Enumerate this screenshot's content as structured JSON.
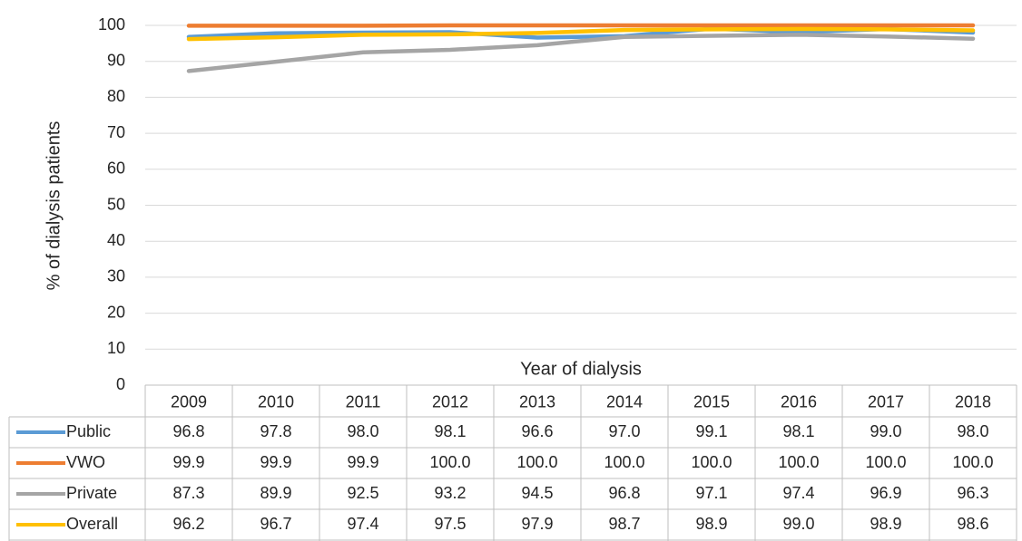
{
  "chart_data": {
    "type": "line",
    "y_axis_label": "% of dialysis patients",
    "x_axis_label": "Year of dialysis",
    "categories": [
      "2009",
      "2010",
      "2011",
      "2012",
      "2013",
      "2014",
      "2015",
      "2016",
      "2017",
      "2018"
    ],
    "ylim": [
      0,
      100
    ],
    "yticks": [
      0,
      10,
      20,
      30,
      40,
      50,
      60,
      70,
      80,
      90,
      100
    ],
    "grid": true,
    "series": [
      {
        "name": "Public",
        "color": "#5b9bd5",
        "values": [
          96.8,
          97.8,
          98.0,
          98.1,
          96.6,
          97.0,
          99.1,
          98.1,
          99.0,
          98.0
        ],
        "value_labels": [
          "96.8",
          "97.8",
          "98.0",
          "98.1",
          "96.6",
          "97.0",
          "99.1",
          "98.1",
          "99.0",
          "98.0"
        ]
      },
      {
        "name": "VWO",
        "color": "#ed7d31",
        "values": [
          99.9,
          99.9,
          99.9,
          100.0,
          100.0,
          100.0,
          100.0,
          100.0,
          100.0,
          100.0
        ],
        "value_labels": [
          "99.9",
          "99.9",
          "99.9",
          "100.0",
          "100.0",
          "100.0",
          "100.0",
          "100.0",
          "100.0",
          "100.0"
        ]
      },
      {
        "name": "Private",
        "color": "#a5a5a5",
        "values": [
          87.3,
          89.9,
          92.5,
          93.2,
          94.5,
          96.8,
          97.1,
          97.4,
          96.9,
          96.3
        ],
        "value_labels": [
          "87.3",
          "89.9",
          "92.5",
          "93.2",
          "94.5",
          "96.8",
          "97.1",
          "97.4",
          "96.9",
          "96.3"
        ]
      },
      {
        "name": "Overall",
        "color": "#ffc000",
        "values": [
          96.2,
          96.7,
          97.4,
          97.5,
          97.9,
          98.7,
          98.9,
          99.0,
          98.9,
          98.6
        ],
        "value_labels": [
          "96.2",
          "96.7",
          "97.4",
          "97.5",
          "97.9",
          "98.7",
          "98.9",
          "99.0",
          "98.9",
          "98.6"
        ]
      }
    ]
  }
}
